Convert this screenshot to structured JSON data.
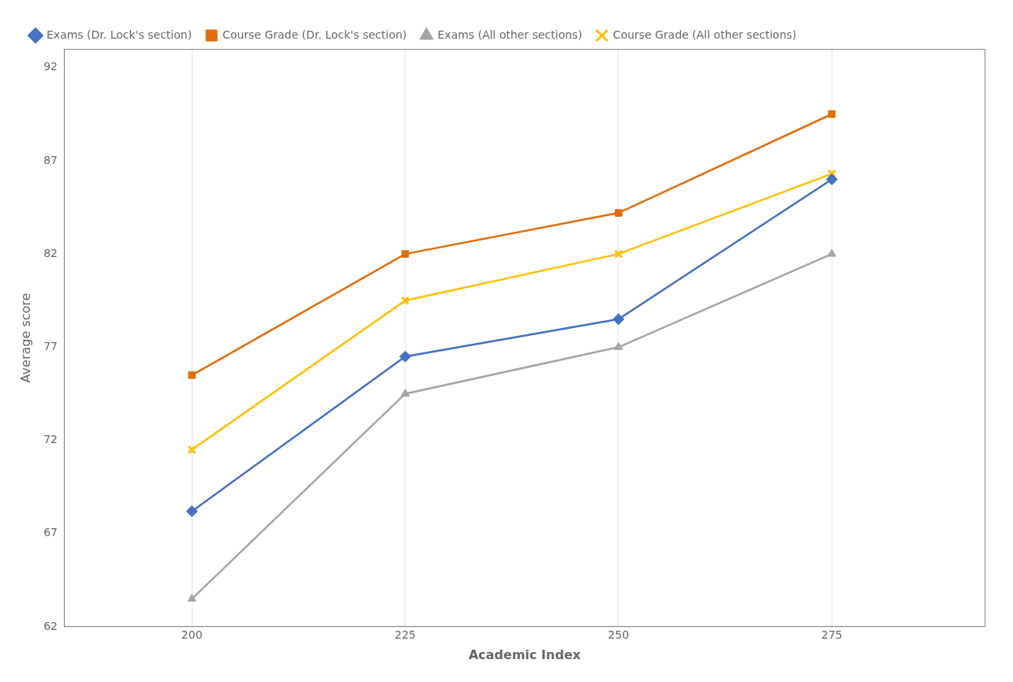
{
  "chart_data": {
    "type": "line",
    "xlabel": "Academic Index",
    "ylabel": "Average score",
    "x": [
      200,
      225,
      250,
      275
    ],
    "series": [
      {
        "name": "Exams (Dr. Lock's section)",
        "color": "#4472C4",
        "marker": "diamond",
        "line_style": "solid",
        "values": [
          68.2,
          76.5,
          78.5,
          86.0
        ]
      },
      {
        "name": "Course Grade (Dr. Lock's section)",
        "color": "#E36C09",
        "marker": "square",
        "line_style": "solid",
        "values": [
          75.5,
          82.0,
          84.2,
          89.5
        ]
      },
      {
        "name": "Exams (All other sections)",
        "color": "#A5A5A5",
        "marker": "triangle",
        "line_style": "solid",
        "values": [
          63.5,
          74.5,
          77.0,
          82.0
        ]
      },
      {
        "name": "Course Grade (All other sections)",
        "color": "#FFC000",
        "marker": "x",
        "line_style": "solid",
        "values": [
          71.5,
          79.5,
          82.0,
          86.3
        ]
      }
    ],
    "xlim": [
      185,
      293
    ],
    "ylim": [
      62,
      93
    ],
    "xticks": [
      200,
      225,
      250,
      275
    ],
    "yticks": [
      62,
      67,
      72,
      77,
      82,
      87,
      92
    ],
    "grid": "x",
    "legend": "top"
  }
}
